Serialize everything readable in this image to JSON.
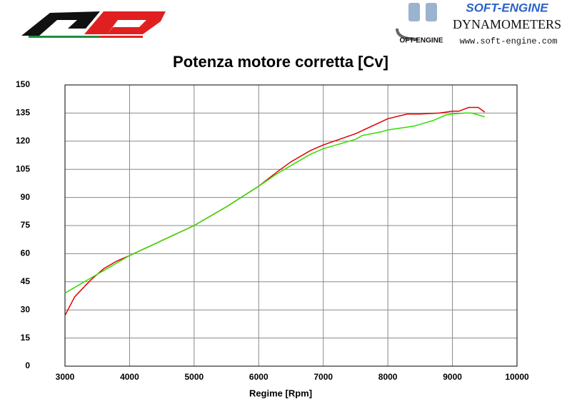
{
  "brand": {
    "name": "SOFT-ENGINE",
    "subtitle": "DYNAMOMETERS",
    "url": "www.soft-engine.com",
    "mark": "OFT-ENGINE"
  },
  "chart_data": {
    "type": "line",
    "title": "Potenza motore corretta [Cv]",
    "x_label": "Regime [Rpm]",
    "xlim": [
      3000,
      10000
    ],
    "xticks": [
      3000,
      4000,
      5000,
      6000,
      7000,
      8000,
      9000,
      10000
    ],
    "ylim": [
      0,
      150
    ],
    "yticks": [
      0,
      15,
      30,
      45,
      60,
      75,
      90,
      105,
      120,
      135,
      150
    ],
    "grid": true,
    "series": [
      {
        "color": "#e00000",
        "x": [
          3000,
          3150,
          3400,
          3600,
          3800,
          4000,
          4500,
          5000,
          5500,
          6000,
          6300,
          6500,
          6800,
          7000,
          7500,
          8000,
          8300,
          8500,
          8800,
          9000,
          9100,
          9250,
          9400,
          9500
        ],
        "values": [
          27,
          37,
          46,
          52,
          56,
          59,
          67,
          75,
          85,
          96,
          104,
          109,
          115,
          118,
          124,
          132,
          134.5,
          134.5,
          135,
          136,
          136,
          138,
          138,
          135.5
        ]
      },
      {
        "color": "#33dd00",
        "x": [
          3000,
          3300,
          3600,
          4000,
          4500,
          5000,
          5500,
          6000,
          6300,
          6500,
          6800,
          7000,
          7300,
          7500,
          7600,
          7900,
          8000,
          8200,
          8400,
          8700,
          8900,
          9000,
          9200,
          9300,
          9500
        ],
        "values": [
          39,
          45,
          51,
          59,
          67,
          75,
          85,
          96,
          103,
          107,
          113,
          116,
          119,
          121,
          123,
          125,
          126,
          127,
          128,
          131,
          134,
          134.5,
          135,
          135,
          133
        ]
      }
    ]
  }
}
